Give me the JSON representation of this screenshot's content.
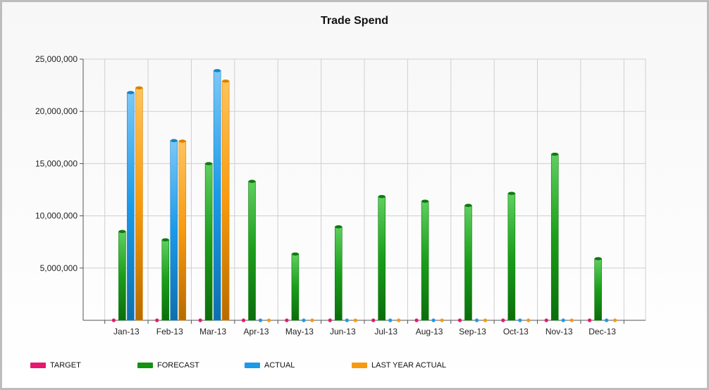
{
  "chart_data": {
    "type": "bar",
    "title": "Trade Spend",
    "categories": [
      "Jan-13",
      "Feb-13",
      "Mar-13",
      "Apr-13",
      "May-13",
      "Jun-13",
      "Jul-13",
      "Aug-13",
      "Sep-13",
      "Oct-13",
      "Nov-13",
      "Dec-13"
    ],
    "ylim": [
      0,
      25000000
    ],
    "yticks": [
      {
        "value": 5000000,
        "label": "5,000,000"
      },
      {
        "value": 10000000,
        "label": "10,000,000"
      },
      {
        "value": 15000000,
        "label": "15,000,000"
      },
      {
        "value": 20000000,
        "label": "20,000,000"
      },
      {
        "value": 25000000,
        "label": "25,000,000"
      }
    ],
    "grid": true,
    "legend_position": "bottom",
    "series": [
      {
        "name": "TARGET",
        "color": "#e8166e",
        "values": [
          0,
          0,
          0,
          0,
          0,
          0,
          0,
          0,
          0,
          0,
          0,
          0
        ]
      },
      {
        "name": "FORECAST",
        "color": "#129312",
        "values": [
          8500000,
          7700000,
          15000000,
          13300000,
          6350000,
          8950000,
          11850000,
          11400000,
          11000000,
          12150000,
          15900000,
          5900000
        ]
      },
      {
        "name": "ACTUAL",
        "color": "#1b9ae8",
        "values": [
          21800000,
          17200000,
          23900000,
          0,
          0,
          0,
          0,
          0,
          0,
          0,
          0,
          0
        ]
      },
      {
        "name": "LAST YEAR ACTUAL",
        "color": "#f79a0e",
        "values": [
          22250000,
          17150000,
          22900000,
          0,
          0,
          0,
          0,
          0,
          0,
          0,
          0,
          0
        ]
      }
    ]
  }
}
